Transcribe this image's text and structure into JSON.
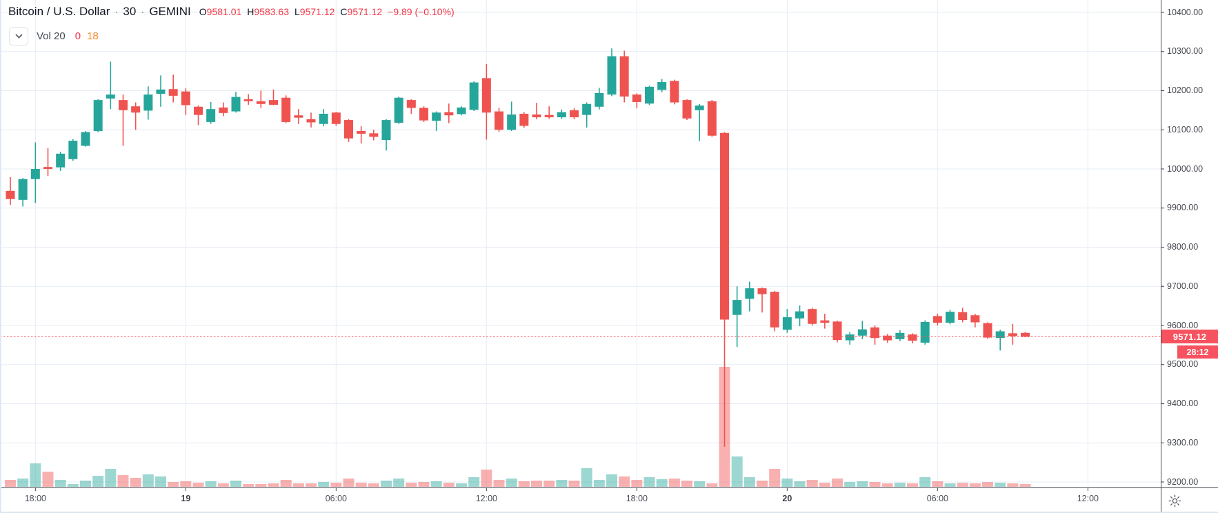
{
  "header": {
    "symbol_title": "Bitcoin / U.S. Dollar",
    "separator": "·",
    "interval": "30",
    "exchange": "GEMINI",
    "ohlc": {
      "o_label": "O",
      "o": "9581.01",
      "h_label": "H",
      "h": "9583.63",
      "l_label": "L",
      "l": "9571.12",
      "c_label": "C",
      "c": "9571.12",
      "change": "−9.89 (−0.10%)"
    },
    "indicator": {
      "label": "Vol 20",
      "v1": "0",
      "v2": "18"
    }
  },
  "price_axis": {
    "last_price": "9571.12",
    "countdown": "28:12"
  },
  "colors": {
    "up": "#26a69a",
    "down": "#ef5350",
    "vol_up": "rgba(38,166,154,0.45)",
    "vol_down": "rgba(239,83,80,0.45)",
    "grid": "#e6ecf6",
    "axis_line": "#434650",
    "axis_text": "#44474f",
    "legend_red": "#f23645",
    "legend_orange": "#f7882d",
    "badge_bg": "#f7525f",
    "dashed_price_line": "#f7525f"
  },
  "chart_data": {
    "type": "candlestick",
    "title": "Bitcoin / U.S. Dollar · 30 · GEMINI",
    "interval_minutes": 30,
    "last_price": 9571.12,
    "ylim": [
      9200,
      10400
    ],
    "price_grid_step": 100,
    "grid": true,
    "price_axis_labels": [
      "10400.00",
      "10300.00",
      "10200.00",
      "10100.00",
      "10000.00",
      "9900.00",
      "9800.00",
      "9700.00",
      "9600.00",
      "9500.00",
      "9400.00",
      "9300.00",
      "9200.00"
    ],
    "time_ticks": [
      {
        "label": "18:00",
        "candle_index": 2,
        "major": false
      },
      {
        "label": "19",
        "candle_index": 14,
        "major": true
      },
      {
        "label": "06:00",
        "candle_index": 26,
        "major": false
      },
      {
        "label": "12:00",
        "candle_index": 38,
        "major": false
      },
      {
        "label": "18:00",
        "candle_index": 50,
        "major": false
      },
      {
        "label": "20",
        "candle_index": 62,
        "major": true
      },
      {
        "label": "06:00",
        "candle_index": 74,
        "major": false
      },
      {
        "label": "12:00",
        "candle_index": 86,
        "major": false
      }
    ],
    "candle_format": [
      "open",
      "high",
      "low",
      "close",
      "volume_rel"
    ],
    "candles": [
      [
        9944,
        9979,
        9908,
        9923,
        10
      ],
      [
        9921,
        9977,
        9904,
        9974,
        12
      ],
      [
        9974,
        10068,
        9913,
        10000,
        34
      ],
      [
        10005,
        10053,
        9982,
        10000,
        22
      ],
      [
        10004,
        10044,
        9995,
        10039,
        10
      ],
      [
        10025,
        10076,
        10021,
        10072,
        4
      ],
      [
        10059,
        10097,
        10057,
        10094,
        9
      ],
      [
        10097,
        10178,
        10094,
        10176,
        16
      ],
      [
        10180,
        10274,
        10153,
        10190,
        26
      ],
      [
        10176,
        10190,
        10059,
        10150,
        17
      ],
      [
        10160,
        10170,
        10100,
        10144,
        13
      ],
      [
        10149,
        10211,
        10126,
        10190,
        18
      ],
      [
        10192,
        10239,
        10159,
        10203,
        15
      ],
      [
        10204,
        10241,
        10170,
        10187,
        7
      ],
      [
        10198,
        10206,
        10138,
        10163,
        8
      ],
      [
        10159,
        10162,
        10112,
        10138,
        6
      ],
      [
        10120,
        10171,
        10115,
        10153,
        8
      ],
      [
        10157,
        10170,
        10135,
        10143,
        5
      ],
      [
        10147,
        10197,
        10144,
        10184,
        9
      ],
      [
        10178,
        10191,
        10164,
        10173,
        4
      ],
      [
        10173,
        10200,
        10156,
        10166,
        4
      ],
      [
        10176,
        10203,
        10163,
        10164,
        5
      ],
      [
        10182,
        10188,
        10117,
        10120,
        10
      ],
      [
        10137,
        10153,
        10115,
        10131,
        5
      ],
      [
        10127,
        10144,
        10106,
        10119,
        5
      ],
      [
        10115,
        10153,
        10109,
        10141,
        7
      ],
      [
        10144,
        10146,
        10110,
        10115,
        6
      ],
      [
        10125,
        10127,
        10069,
        10078,
        12
      ],
      [
        10097,
        10109,
        10065,
        10090,
        6
      ],
      [
        10091,
        10100,
        10073,
        10082,
        5
      ],
      [
        10074,
        10127,
        10047,
        10125,
        9
      ],
      [
        10118,
        10185,
        10115,
        10182,
        12
      ],
      [
        10176,
        10178,
        10141,
        10156,
        6
      ],
      [
        10156,
        10160,
        10120,
        10124,
        7
      ],
      [
        10123,
        10147,
        10097,
        10144,
        8
      ],
      [
        10145,
        10167,
        10117,
        10137,
        6
      ],
      [
        10140,
        10160,
        10137,
        10157,
        5
      ],
      [
        10151,
        10224,
        10148,
        10221,
        14
      ],
      [
        10232,
        10268,
        10075,
        10144,
        25
      ],
      [
        10147,
        10156,
        10095,
        10100,
        10
      ],
      [
        10100,
        10172,
        10097,
        10139,
        12
      ],
      [
        10141,
        10145,
        10105,
        10110,
        8
      ],
      [
        10139,
        10169,
        10127,
        10132,
        9
      ],
      [
        10138,
        10160,
        10128,
        10132,
        9
      ],
      [
        10132,
        10152,
        10128,
        10145,
        10
      ],
      [
        10150,
        10155,
        10127,
        10132,
        9
      ],
      [
        10138,
        10170,
        10106,
        10166,
        27
      ],
      [
        10159,
        10207,
        10152,
        10194,
        10
      ],
      [
        10190,
        10308,
        10186,
        10288,
        18
      ],
      [
        10288,
        10302,
        10170,
        10185,
        15
      ],
      [
        10190,
        10193,
        10155,
        10171,
        10
      ],
      [
        10167,
        10213,
        10163,
        10210,
        14
      ],
      [
        10202,
        10230,
        10196,
        10222,
        11
      ],
      [
        10225,
        10228,
        10165,
        10170,
        12
      ],
      [
        10176,
        10178,
        10125,
        10129,
        9
      ],
      [
        10150,
        10166,
        10071,
        10162,
        8
      ],
      [
        10173,
        10176,
        10082,
        10085,
        5
      ],
      [
        10092,
        10094,
        9290,
        9615,
        174
      ],
      [
        9627,
        9700,
        9545,
        9665,
        44
      ],
      [
        9668,
        9712,
        9636,
        9695,
        14
      ],
      [
        9695,
        9697,
        9633,
        9680,
        9
      ],
      [
        9686,
        9688,
        9585,
        9595,
        26
      ],
      [
        9589,
        9642,
        9581,
        9621,
        12
      ],
      [
        9618,
        9651,
        9598,
        9636,
        8
      ],
      [
        9642,
        9645,
        9600,
        9604,
        10
      ],
      [
        9613,
        9630,
        9592,
        9607,
        6
      ],
      [
        9610,
        9612,
        9557,
        9563,
        12
      ],
      [
        9562,
        9583,
        9551,
        9577,
        7
      ],
      [
        9574,
        9612,
        9565,
        9590,
        8
      ],
      [
        9595,
        9600,
        9551,
        9568,
        7
      ],
      [
        9574,
        9578,
        9556,
        9562,
        5
      ],
      [
        9565,
        9588,
        9560,
        9581,
        6
      ],
      [
        9577,
        9580,
        9554,
        9561,
        5
      ],
      [
        9556,
        9613,
        9551,
        9609,
        14
      ],
      [
        9624,
        9630,
        9600,
        9607,
        8
      ],
      [
        9607,
        9640,
        9603,
        9635,
        5
      ],
      [
        9634,
        9645,
        9608,
        9614,
        6
      ],
      [
        9626,
        9630,
        9595,
        9608,
        5
      ],
      [
        9606,
        9608,
        9566,
        9569,
        7
      ],
      [
        9568,
        9589,
        9536,
        9585,
        6
      ],
      [
        9580,
        9604,
        9551,
        9573,
        5
      ],
      [
        9581.01,
        9583.63,
        9571.12,
        9571.12,
        4
      ]
    ]
  }
}
